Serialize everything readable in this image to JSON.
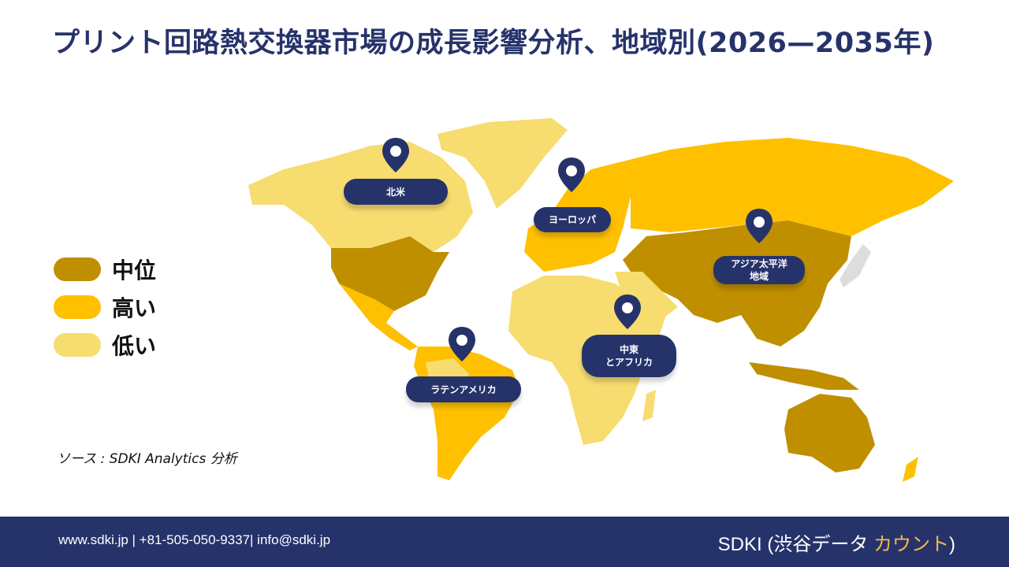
{
  "title": "プリント回路熱交換器市場の成長影響分析、地域別(2026—2035年)",
  "legend": [
    {
      "label": "中位",
      "color": "#BF8F00"
    },
    {
      "label": "高い",
      "color": "#FFC000"
    },
    {
      "label": "低い",
      "color": "#F7DC6F"
    }
  ],
  "regions": [
    {
      "label": "北米",
      "level": "中位"
    },
    {
      "label": "ヨーロッパ",
      "level": "高い"
    },
    {
      "label": "アジア太平洋地域",
      "level": "中位"
    },
    {
      "label": "中東とアフリカ",
      "level": "低い"
    },
    {
      "label": "ラテンアメリカ",
      "level": "高い"
    }
  ],
  "pin_labels": {
    "north_america": "北米",
    "europe": "ヨーロッパ",
    "asia_pacific_1": "アジア太平洋",
    "asia_pacific_2": "地域",
    "mea_1": "中東",
    "mea_2": "とアフリカ",
    "latin_america": "ラテンアメリカ"
  },
  "source": "ソース : SDKI Analytics 分析",
  "footer": {
    "contact": "www.sdki.jp | +81-505-050-9337| info@sdki.jp",
    "brand_main": "SDKI (渋谷データ ",
    "brand_accent": "カウント",
    "brand_close": ")"
  },
  "colors": {
    "navy": "#26336B",
    "mid": "#BF8F00",
    "high": "#FFC000",
    "low": "#F7DC6F"
  }
}
